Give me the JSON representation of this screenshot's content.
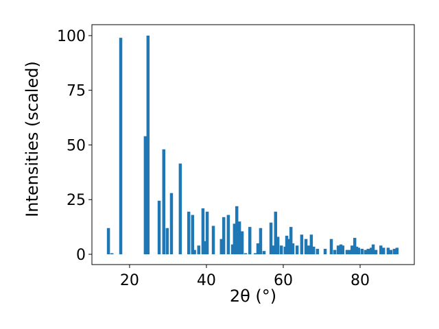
{
  "chart_data": {
    "type": "bar",
    "x_label": "2θ (°)",
    "y_label": "Intensities (scaled)",
    "color": "#1f77b4",
    "x": [
      14.5,
      15.4,
      17.7,
      24.1,
      24.8,
      27.7,
      28.9,
      29.8,
      30.9,
      33.2,
      35.4,
      36.4,
      36.9,
      38.0,
      39.1,
      39.5,
      40.2,
      41.8,
      43.9,
      44.5,
      45.7,
      46.8,
      47.3,
      47.9,
      48.6,
      49.3,
      50.2,
      51.3,
      52.7,
      53.4,
      54.1,
      55.0,
      56.8,
      57.5,
      58.0,
      58.6,
      59.5,
      60.5,
      60.9,
      61.4,
      62.0,
      62.5,
      63.6,
      64.8,
      65.9,
      66.6,
      67.3,
      67.9,
      68.9,
      70.9,
      72.5,
      73.4,
      74.3,
      75.0,
      75.5,
      76.6,
      77.3,
      77.9,
      78.6,
      79.1,
      79.6,
      80.5,
      81.4,
      82.1,
      82.9,
      83.4,
      84.1,
      85.4,
      86.1,
      87.3,
      88.0,
      88.9,
      89.6
    ],
    "values": [
      12,
      0.5,
      99,
      54,
      100,
      24.5,
      48,
      12,
      28,
      41.5,
      19.5,
      18,
      2,
      4,
      21,
      6,
      19.5,
      13,
      7,
      17,
      18,
      4.5,
      14,
      22,
      15,
      10.5,
      0.5,
      12.5,
      0.5,
      5,
      12,
      1.5,
      14.5,
      4,
      19.5,
      8,
      4,
      3.5,
      8.5,
      7,
      12.5,
      5,
      4,
      9,
      7,
      4,
      9,
      3.5,
      2.5,
      2.5,
      7,
      2,
      4,
      4.5,
      4,
      2,
      2,
      4,
      7.5,
      3.5,
      3,
      2.5,
      2,
      2.5,
      3,
      4.5,
      2,
      4,
      3,
      3,
      2,
      2.5,
      3
    ],
    "xlim": [
      10.2,
      94.1
    ],
    "ylim": [
      -4.7,
      105
    ],
    "xticks": [
      20,
      40,
      60,
      80
    ],
    "yticks": [
      0,
      25,
      50,
      75,
      100
    ]
  }
}
